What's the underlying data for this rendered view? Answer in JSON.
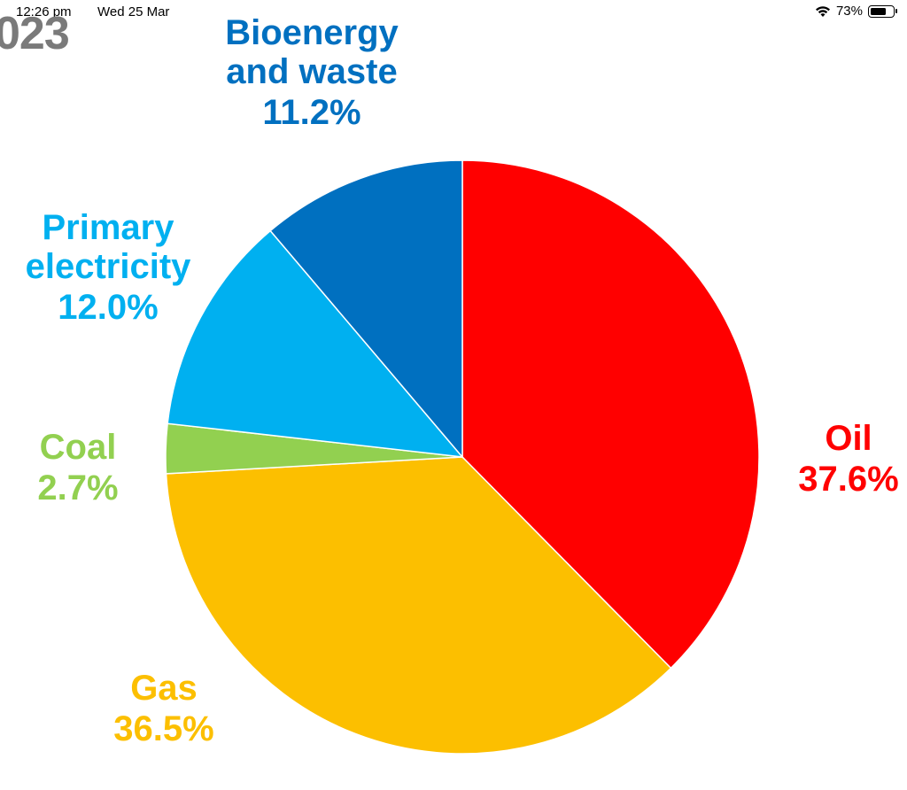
{
  "status_bar": {
    "time": "12:26 pm",
    "date": "Wed 25 Mar",
    "battery": "73%",
    "battery_level": 0.73,
    "icons": [
      "wifi-icon",
      "battery-icon"
    ]
  },
  "header": {
    "partial_title": "023"
  },
  "chart_data": {
    "type": "pie",
    "slices": [
      {
        "name": "Oil",
        "value": 37.6,
        "value_label": "37.6%",
        "color": "#ff0000"
      },
      {
        "name": "Gas",
        "value": 36.5,
        "value_label": "36.5%",
        "color": "#fcbf00"
      },
      {
        "name": "Coal",
        "value": 2.7,
        "value_label": "2.7%",
        "color": "#92d050"
      },
      {
        "name": "Primary electricity",
        "value": 12.0,
        "value_label": "12.0%",
        "color": "#00b0f0"
      },
      {
        "name": "Bioenergy and waste",
        "value": 11.2,
        "value_label": "11.2%",
        "color": "#0070c0"
      }
    ],
    "start": "12 o'clock",
    "direction": "clockwise"
  }
}
